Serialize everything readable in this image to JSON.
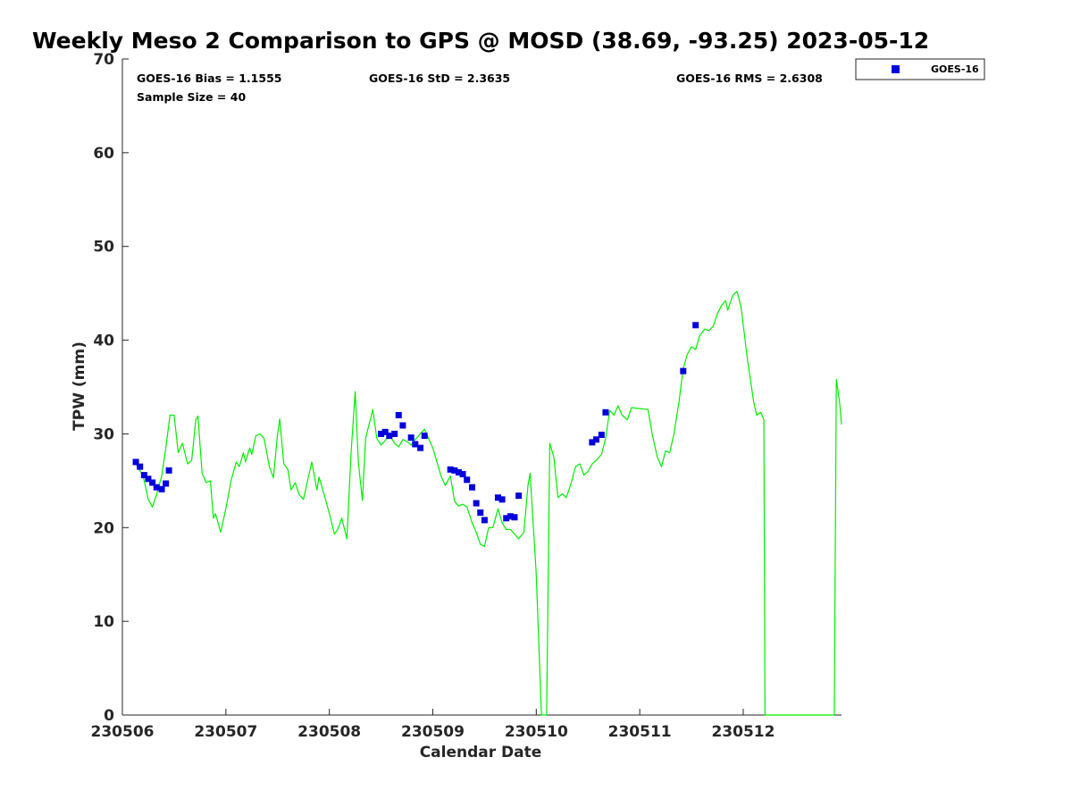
{
  "chart_data": {
    "type": "scatter",
    "title": "Weekly Meso 2 Comparison to GPS @ MOSD (38.69, -93.25) 2023-05-12",
    "xlabel": "Calendar Date",
    "ylabel": "TPW (mm)",
    "x_tick_labels": [
      "230506",
      "230507",
      "230508",
      "230509",
      "230510",
      "230511",
      "230512"
    ],
    "x_ticks_days": [
      0,
      1,
      2,
      3,
      4,
      5,
      6
    ],
    "xlim_days": [
      0,
      6.95
    ],
    "ylim": [
      0,
      70
    ],
    "y_ticks": [
      0,
      10,
      20,
      30,
      40,
      50,
      60,
      70
    ],
    "grid": false,
    "legend": {
      "position": "top-right (outside plot)",
      "entries": [
        "GOES-16"
      ]
    },
    "stats": {
      "bias": "GOES-16 Bias = 1.1555",
      "std": "GOES-16 StD = 2.3635",
      "rms": "GOES-16 RMS = 2.6308",
      "sample": "Sample Size = 40"
    },
    "colors": {
      "goes": "#0000dd",
      "gps_line": "#00ee00",
      "axes": "#262626"
    },
    "series": [
      {
        "name": "GOES-16",
        "kind": "scatter",
        "points": [
          [
            0.13,
            27.0
          ],
          [
            0.17,
            26.5
          ],
          [
            0.21,
            25.6
          ],
          [
            0.25,
            25.2
          ],
          [
            0.29,
            24.8
          ],
          [
            0.33,
            24.3
          ],
          [
            0.38,
            24.1
          ],
          [
            0.42,
            24.7
          ],
          [
            0.45,
            26.1
          ],
          [
            2.5,
            30.0
          ],
          [
            2.54,
            30.2
          ],
          [
            2.58,
            29.8
          ],
          [
            2.63,
            30.0
          ],
          [
            2.67,
            32.0
          ],
          [
            2.71,
            30.9
          ],
          [
            2.79,
            29.6
          ],
          [
            2.83,
            28.9
          ],
          [
            2.88,
            28.5
          ],
          [
            2.92,
            29.8
          ],
          [
            3.17,
            26.2
          ],
          [
            3.21,
            26.1
          ],
          [
            3.25,
            25.9
          ],
          [
            3.29,
            25.7
          ],
          [
            3.33,
            25.1
          ],
          [
            3.38,
            24.3
          ],
          [
            3.42,
            22.6
          ],
          [
            3.46,
            21.6
          ],
          [
            3.5,
            20.8
          ],
          [
            3.63,
            23.2
          ],
          [
            3.67,
            23.0
          ],
          [
            3.71,
            21.0
          ],
          [
            3.75,
            21.2
          ],
          [
            3.79,
            21.1
          ],
          [
            3.83,
            23.4
          ],
          [
            4.54,
            29.1
          ],
          [
            4.58,
            29.4
          ],
          [
            4.63,
            29.9
          ],
          [
            4.67,
            32.3
          ],
          [
            5.42,
            36.7
          ],
          [
            5.54,
            41.6
          ]
        ]
      },
      {
        "kind": "line",
        "points": [
          [
            0.12,
            27.0
          ],
          [
            0.2,
            25.5
          ],
          [
            0.25,
            23.0
          ],
          [
            0.29,
            22.2
          ],
          [
            0.33,
            23.5
          ],
          [
            0.38,
            25.5
          ],
          [
            0.42,
            28.5
          ],
          [
            0.46,
            32.0
          ],
          [
            0.5,
            32.0
          ],
          [
            0.54,
            28.0
          ],
          [
            0.58,
            29.0
          ],
          [
            0.63,
            26.8
          ],
          [
            0.67,
            27.2
          ],
          [
            0.71,
            31.5
          ],
          [
            0.73,
            31.9
          ],
          [
            0.77,
            25.8
          ],
          [
            0.81,
            24.8
          ],
          [
            0.85,
            25.0
          ],
          [
            0.88,
            21.0
          ],
          [
            0.9,
            21.5
          ],
          [
            0.95,
            19.5
          ],
          [
            1.0,
            22.0
          ],
          [
            1.05,
            25.0
          ],
          [
            1.1,
            27.0
          ],
          [
            1.13,
            26.5
          ],
          [
            1.17,
            28.0
          ],
          [
            1.19,
            27.0
          ],
          [
            1.23,
            28.5
          ],
          [
            1.25,
            27.8
          ],
          [
            1.29,
            29.8
          ],
          [
            1.33,
            30.0
          ],
          [
            1.37,
            29.5
          ],
          [
            1.42,
            26.5
          ],
          [
            1.46,
            25.3
          ],
          [
            1.5,
            30.0
          ],
          [
            1.52,
            31.6
          ],
          [
            1.56,
            26.8
          ],
          [
            1.6,
            26.2
          ],
          [
            1.63,
            24.0
          ],
          [
            1.67,
            24.8
          ],
          [
            1.71,
            23.5
          ],
          [
            1.75,
            23.0
          ],
          [
            1.79,
            25.0
          ],
          [
            1.83,
            27.0
          ],
          [
            1.88,
            24.0
          ],
          [
            1.9,
            25.4
          ],
          [
            1.95,
            23.5
          ],
          [
            2.0,
            21.5
          ],
          [
            2.05,
            19.3
          ],
          [
            2.08,
            19.8
          ],
          [
            2.12,
            21.0
          ],
          [
            2.17,
            18.8
          ],
          [
            2.21,
            28.0
          ],
          [
            2.25,
            34.5
          ],
          [
            2.28,
            27.0
          ],
          [
            2.32,
            22.9
          ],
          [
            2.35,
            29.5
          ],
          [
            2.42,
            32.6
          ],
          [
            2.46,
            29.5
          ],
          [
            2.5,
            28.8
          ],
          [
            2.54,
            29.3
          ],
          [
            2.58,
            29.9
          ],
          [
            2.63,
            29.0
          ],
          [
            2.67,
            28.6
          ],
          [
            2.71,
            29.4
          ],
          [
            2.75,
            29.2
          ],
          [
            2.79,
            28.8
          ],
          [
            2.83,
            29.4
          ],
          [
            2.92,
            30.5
          ],
          [
            3.0,
            28.5
          ],
          [
            3.08,
            25.5
          ],
          [
            3.12,
            24.5
          ],
          [
            3.17,
            25.5
          ],
          [
            3.21,
            22.8
          ],
          [
            3.25,
            22.3
          ],
          [
            3.29,
            22.5
          ],
          [
            3.33,
            22.2
          ],
          [
            3.38,
            20.5
          ],
          [
            3.42,
            19.5
          ],
          [
            3.46,
            18.2
          ],
          [
            3.5,
            18.0
          ],
          [
            3.54,
            20.0
          ],
          [
            3.58,
            20.0
          ],
          [
            3.63,
            22.0
          ],
          [
            3.67,
            20.5
          ],
          [
            3.71,
            19.8
          ],
          [
            3.75,
            19.8
          ],
          [
            3.79,
            19.3
          ],
          [
            3.83,
            18.8
          ],
          [
            3.88,
            19.5
          ],
          [
            3.92,
            24.5
          ],
          [
            3.94,
            25.8
          ],
          [
            4.0,
            15.0
          ],
          [
            4.05,
            0.0
          ],
          [
            4.1,
            0.0
          ],
          [
            4.13,
            29.0
          ],
          [
            4.17,
            27.5
          ],
          [
            4.21,
            23.2
          ],
          [
            4.25,
            23.6
          ],
          [
            4.29,
            23.2
          ],
          [
            4.33,
            24.5
          ],
          [
            4.38,
            26.5
          ],
          [
            4.42,
            26.8
          ],
          [
            4.46,
            25.6
          ],
          [
            4.5,
            26.0
          ],
          [
            4.54,
            26.8
          ],
          [
            4.58,
            27.2
          ],
          [
            4.63,
            27.8
          ],
          [
            4.67,
            29.5
          ],
          [
            4.71,
            32.5
          ],
          [
            4.75,
            32.0
          ],
          [
            4.79,
            33.0
          ],
          [
            4.83,
            32.0
          ],
          [
            4.88,
            31.5
          ],
          [
            4.92,
            32.8
          ],
          [
            5.0,
            32.7
          ],
          [
            5.08,
            32.6
          ],
          [
            5.12,
            30.0
          ],
          [
            5.17,
            27.5
          ],
          [
            5.21,
            26.5
          ],
          [
            5.25,
            28.2
          ],
          [
            5.29,
            28.0
          ],
          [
            5.33,
            30.0
          ],
          [
            5.38,
            33.5
          ],
          [
            5.42,
            37.0
          ],
          [
            5.46,
            38.5
          ],
          [
            5.5,
            39.3
          ],
          [
            5.54,
            39.0
          ],
          [
            5.58,
            40.5
          ],
          [
            5.63,
            41.2
          ],
          [
            5.67,
            41.0
          ],
          [
            5.71,
            41.5
          ],
          [
            5.75,
            42.8
          ],
          [
            5.79,
            43.7
          ],
          [
            5.83,
            44.2
          ],
          [
            5.85,
            43.2
          ],
          [
            5.9,
            44.8
          ],
          [
            5.94,
            45.2
          ],
          [
            5.98,
            43.5
          ],
          [
            6.04,
            38.0
          ],
          [
            6.1,
            33.5
          ],
          [
            6.13,
            32.0
          ],
          [
            6.17,
            32.3
          ],
          [
            6.2,
            31.5
          ],
          [
            6.21,
            0.0
          ],
          [
            6.88,
            0.0
          ],
          [
            6.9,
            35.8
          ],
          [
            6.93,
            33.5
          ],
          [
            6.95,
            31.0
          ]
        ]
      }
    ]
  }
}
